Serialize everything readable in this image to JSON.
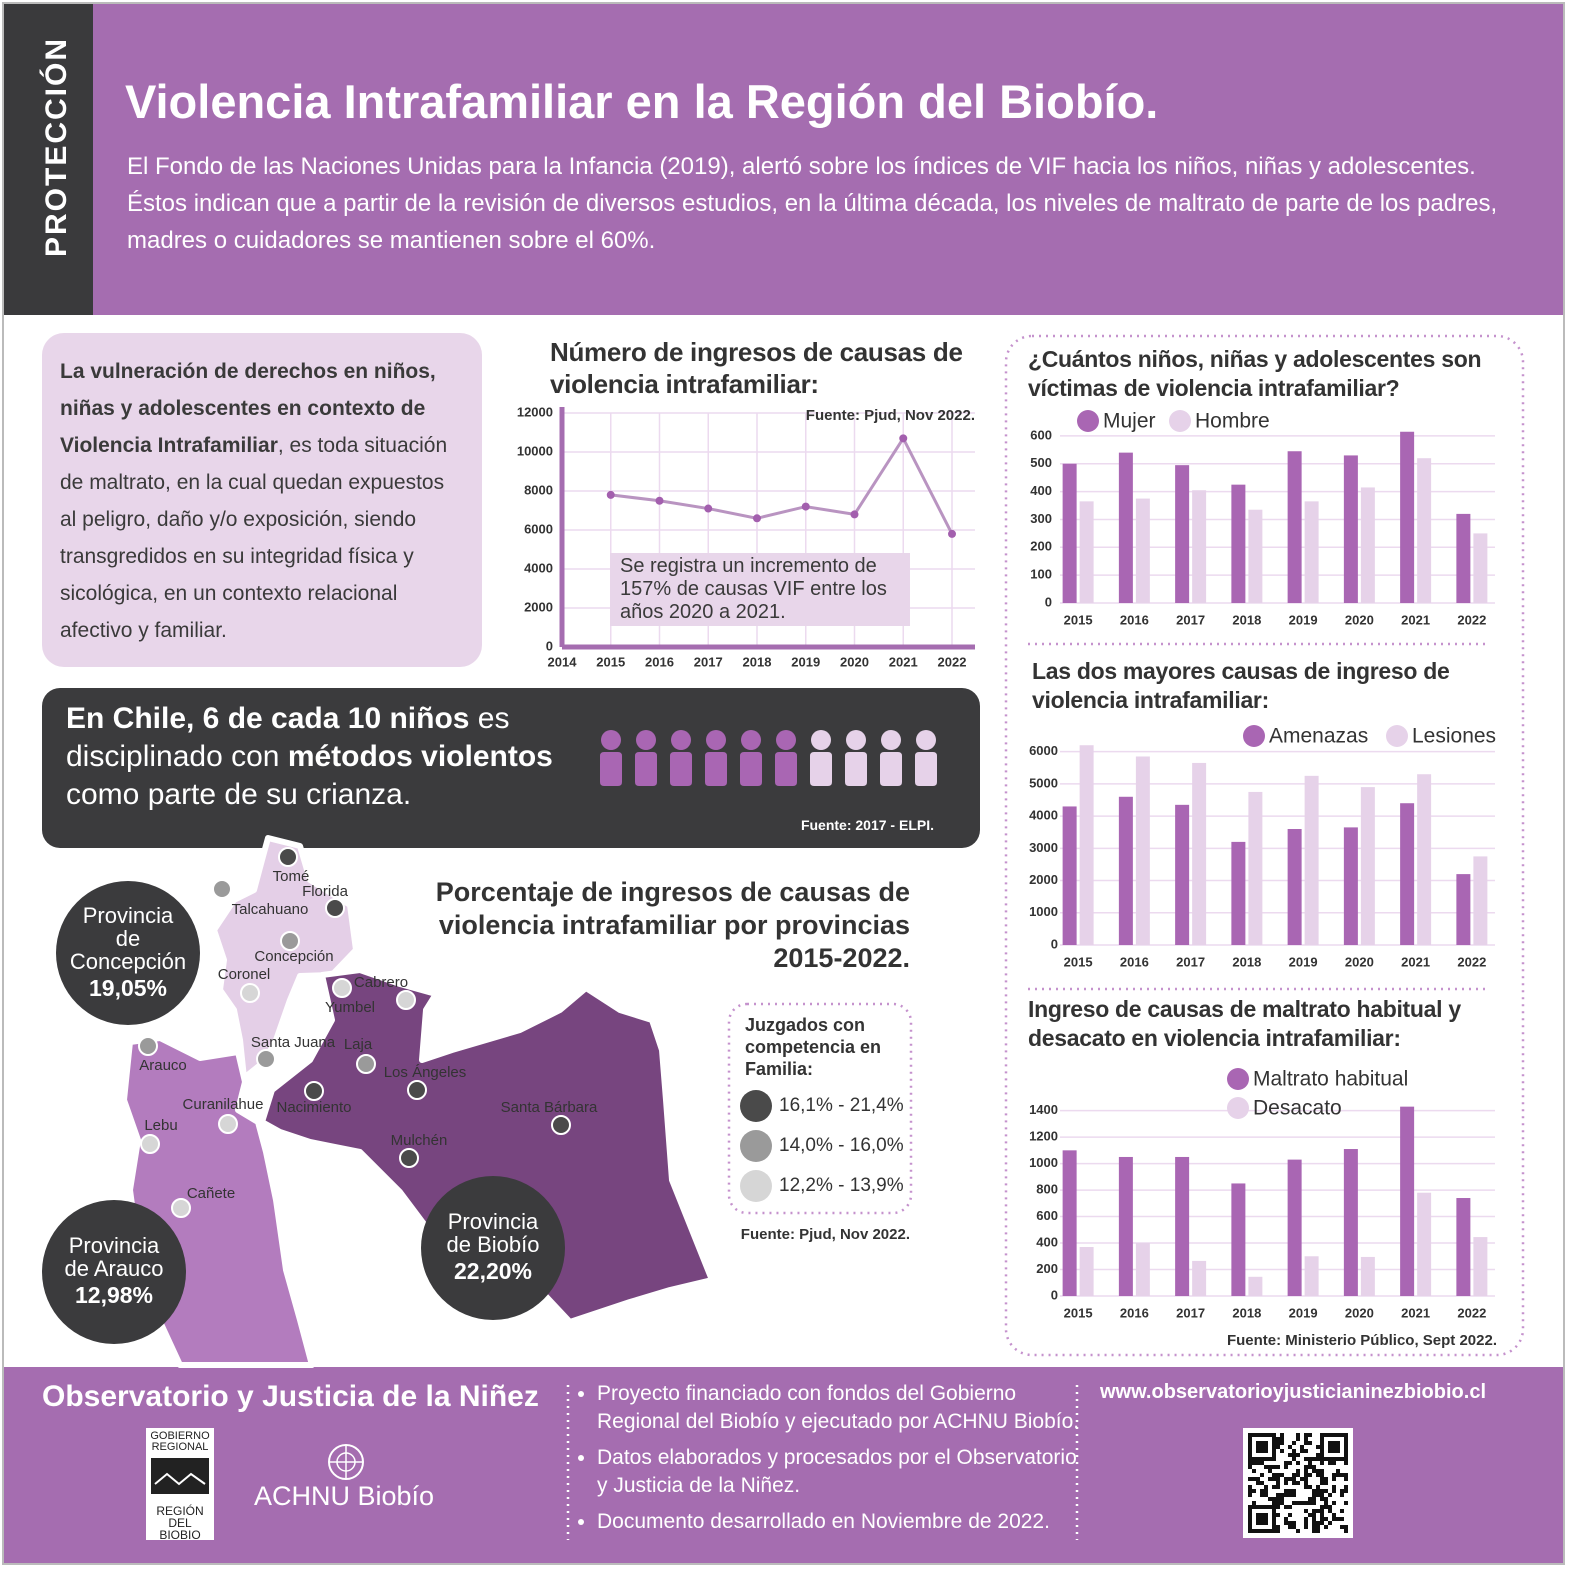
{
  "header": {
    "tag": "PROTECCIÓN",
    "title": "Violencia Intrafamiliar en la Región del Biobío.",
    "text": "El Fondo de las Naciones Unidas para la Infancia (2019), alertó sobre los índices de VIF hacia los niños, niñas y adolescentes. Éstos indican que a partir de la revisión de diversos estudios, en la última década, los niveles de maltrato de parte de los padres, madres o cuidadores se mantienen sobre el 60%."
  },
  "definition": {
    "parts": [
      {
        "text": "La vulneración de derechos en niños, niñas y adolescentes en contexto de Violencia Intrafamiliar",
        "bold": true
      },
      {
        "text": ", es toda situación de maltrato, en la cual quedan expuestos al peligro, daño y/o exposición, siendo transgredidos en su integridad física y sicológica, en un contexto relacional afectivo y familiar.",
        "bold": false
      }
    ]
  },
  "chile": {
    "parts": [
      {
        "text": "En Chile, 6 de cada 10 niños",
        "bold": true
      },
      {
        "text": " es disciplinado con ",
        "bold": false
      },
      {
        "text": "métodos violentos",
        "bold": true
      },
      {
        "text": " como parte de su crianza.",
        "bold": false
      }
    ],
    "source": "Fuente: 2017 - ELPI."
  },
  "chart_data": [
    {
      "type": "line",
      "title": "Número de ingresos de causas de violencia intrafamiliar:",
      "source": "Fuente: Pjud, Nov 2022.",
      "annotation": "Se registra un incremento de 157% de causas VIF entre los años 2020 a 2021.",
      "x": [
        2015,
        2016,
        2017,
        2018,
        2019,
        2020,
        2021,
        2022
      ],
      "values": [
        7800,
        7500,
        7100,
        6600,
        7200,
        6800,
        10700,
        5800
      ],
      "color": "#b994c1",
      "marker_color": "#a35fae",
      "xlim": [
        2014,
        2022
      ],
      "xticks": [
        2014,
        2015,
        2016,
        2017,
        2018,
        2019,
        2020,
        2021,
        2022
      ],
      "ylim": [
        0,
        12000
      ],
      "yticks": [
        0,
        2000,
        4000,
        6000,
        8000,
        10000,
        12000
      ],
      "grid": true
    },
    {
      "type": "bar",
      "title": "¿Cuántos niños, niñas y adolescentes son víctimas de violencia intrafamiliar?",
      "categories": [
        "2015",
        "2016",
        "2017",
        "2018",
        "2019",
        "2020",
        "2021",
        "2022"
      ],
      "series": [
        {
          "name": "Mujer",
          "color": "#a966b3",
          "values": [
            500,
            540,
            495,
            425,
            545,
            530,
            615,
            320
          ]
        },
        {
          "name": "Hombre",
          "color": "#e6d2e9",
          "values": [
            365,
            375,
            405,
            335,
            365,
            415,
            520,
            250
          ]
        }
      ],
      "ylim": [
        0,
        650
      ],
      "yticks": [
        0,
        100,
        200,
        300,
        400,
        500,
        600
      ],
      "grid": true
    },
    {
      "type": "bar",
      "title": "Las dos mayores causas de ingreso de violencia intrafamiliar:",
      "categories": [
        "2015",
        "2016",
        "2017",
        "2018",
        "2019",
        "2020",
        "2021",
        "2022"
      ],
      "series": [
        {
          "name": "Amenazas",
          "color": "#a966b3",
          "values": [
            4300,
            4600,
            4350,
            3200,
            3600,
            3650,
            4400,
            2200
          ]
        },
        {
          "name": "Lesiones",
          "color": "#e6d2e9",
          "values": [
            6200,
            5850,
            5650,
            4750,
            5250,
            4900,
            5300,
            2750
          ]
        }
      ],
      "ylim": [
        0,
        6300
      ],
      "yticks": [
        0,
        1000,
        2000,
        3000,
        4000,
        5000,
        6000
      ],
      "grid": true
    },
    {
      "type": "bar",
      "title": "Ingreso de causas de maltrato habitual y desacato en violencia intrafamiliar:",
      "source": "Fuente: Ministerio Público, Sept 2022.",
      "categories": [
        "2015",
        "2016",
        "2017",
        "2018",
        "2019",
        "2020",
        "2021",
        "2022"
      ],
      "series": [
        {
          "name": "Maltrato habitual",
          "color": "#a966b3",
          "values": [
            1100,
            1050,
            1050,
            850,
            1030,
            1110,
            1430,
            740
          ]
        },
        {
          "name": "Desacato",
          "color": "#e6d2e9",
          "values": [
            370,
            400,
            265,
            145,
            300,
            295,
            780,
            445
          ]
        }
      ],
      "ylim": [
        0,
        1450
      ],
      "yticks": [
        0,
        200,
        400,
        600,
        800,
        1000,
        1200,
        1400
      ],
      "grid": true
    }
  ],
  "map": {
    "title": "Porcentaje de ingresos de causas de violencia intrafamiliar por provincias 2015-2022.",
    "source": "Fuente: Pjud, Nov 2022.",
    "provinces": [
      {
        "name": "Provincia de Concepción",
        "value": 19.05,
        "value_label": "19,05%",
        "color": "#e4cfe7"
      },
      {
        "name": "Provincia de Arauco",
        "value": 12.98,
        "value_label": "12,98%",
        "color": "#b37cbe"
      },
      {
        "name": "Provincia de Biobío",
        "value": 22.2,
        "value_label": "22,20%",
        "color": "#77457f"
      }
    ],
    "legend": {
      "title": "Juzgados con competencia en Familia:",
      "items": [
        {
          "label": "16,1% - 21,4%",
          "color": "#4a4a4a"
        },
        {
          "label": "14,0% - 16,0%",
          "color": "#9a9a9a"
        },
        {
          "label": "12,2% - 13,9%",
          "color": "#d6d6d6"
        }
      ]
    },
    "cities": [
      {
        "name": "Tomé",
        "color": "#4a4a4a"
      },
      {
        "name": "Florida",
        "color": "#4a4a4a"
      },
      {
        "name": "Talcahuano",
        "color": "#9a9a9a"
      },
      {
        "name": "Concepción",
        "color": "#9a9a9a"
      },
      {
        "name": "Coronel",
        "color": "#d6d6d6"
      },
      {
        "name": "Cabrero",
        "color": "#d6d6d6"
      },
      {
        "name": "Yumbel",
        "color": "#d6d6d6"
      },
      {
        "name": "Santa Juana",
        "color": "#9a9a9a"
      },
      {
        "name": "Laja",
        "color": "#9a9a9a"
      },
      {
        "name": "Arauco",
        "color": "#9a9a9a"
      },
      {
        "name": "Nacimiento",
        "color": "#4a4a4a"
      },
      {
        "name": "Los Ángeles",
        "color": "#4a4a4a"
      },
      {
        "name": "Curanilahue",
        "color": "#d6d6d6"
      },
      {
        "name": "Lebu",
        "color": "#d6d6d6"
      },
      {
        "name": "Santa Bárbara",
        "color": "#4a4a4a"
      },
      {
        "name": "Mulchén",
        "color": "#4a4a4a"
      },
      {
        "name": "Cañete",
        "color": "#d6d6d6"
      }
    ]
  },
  "footer": {
    "org": "Observatorio y Justicia de la Niñez",
    "bullets": [
      "Proyecto financiado con fondos del Gobierno Regional del Biobío y ejecutado por ACHNU Biobío.",
      "Datos elaborados y procesados por el Observatorio y Justicia de la Niñez.",
      "Documento desarrollado en Noviembre de 2022."
    ],
    "url": "www.observatorioyjusticianinezbiobio.cl",
    "logo_gobierno": "GOBIERNO REGIONAL",
    "logo_region": "REGIÓN DEL BIOBIO",
    "logo_achnu": "ACHNU Biobío"
  }
}
